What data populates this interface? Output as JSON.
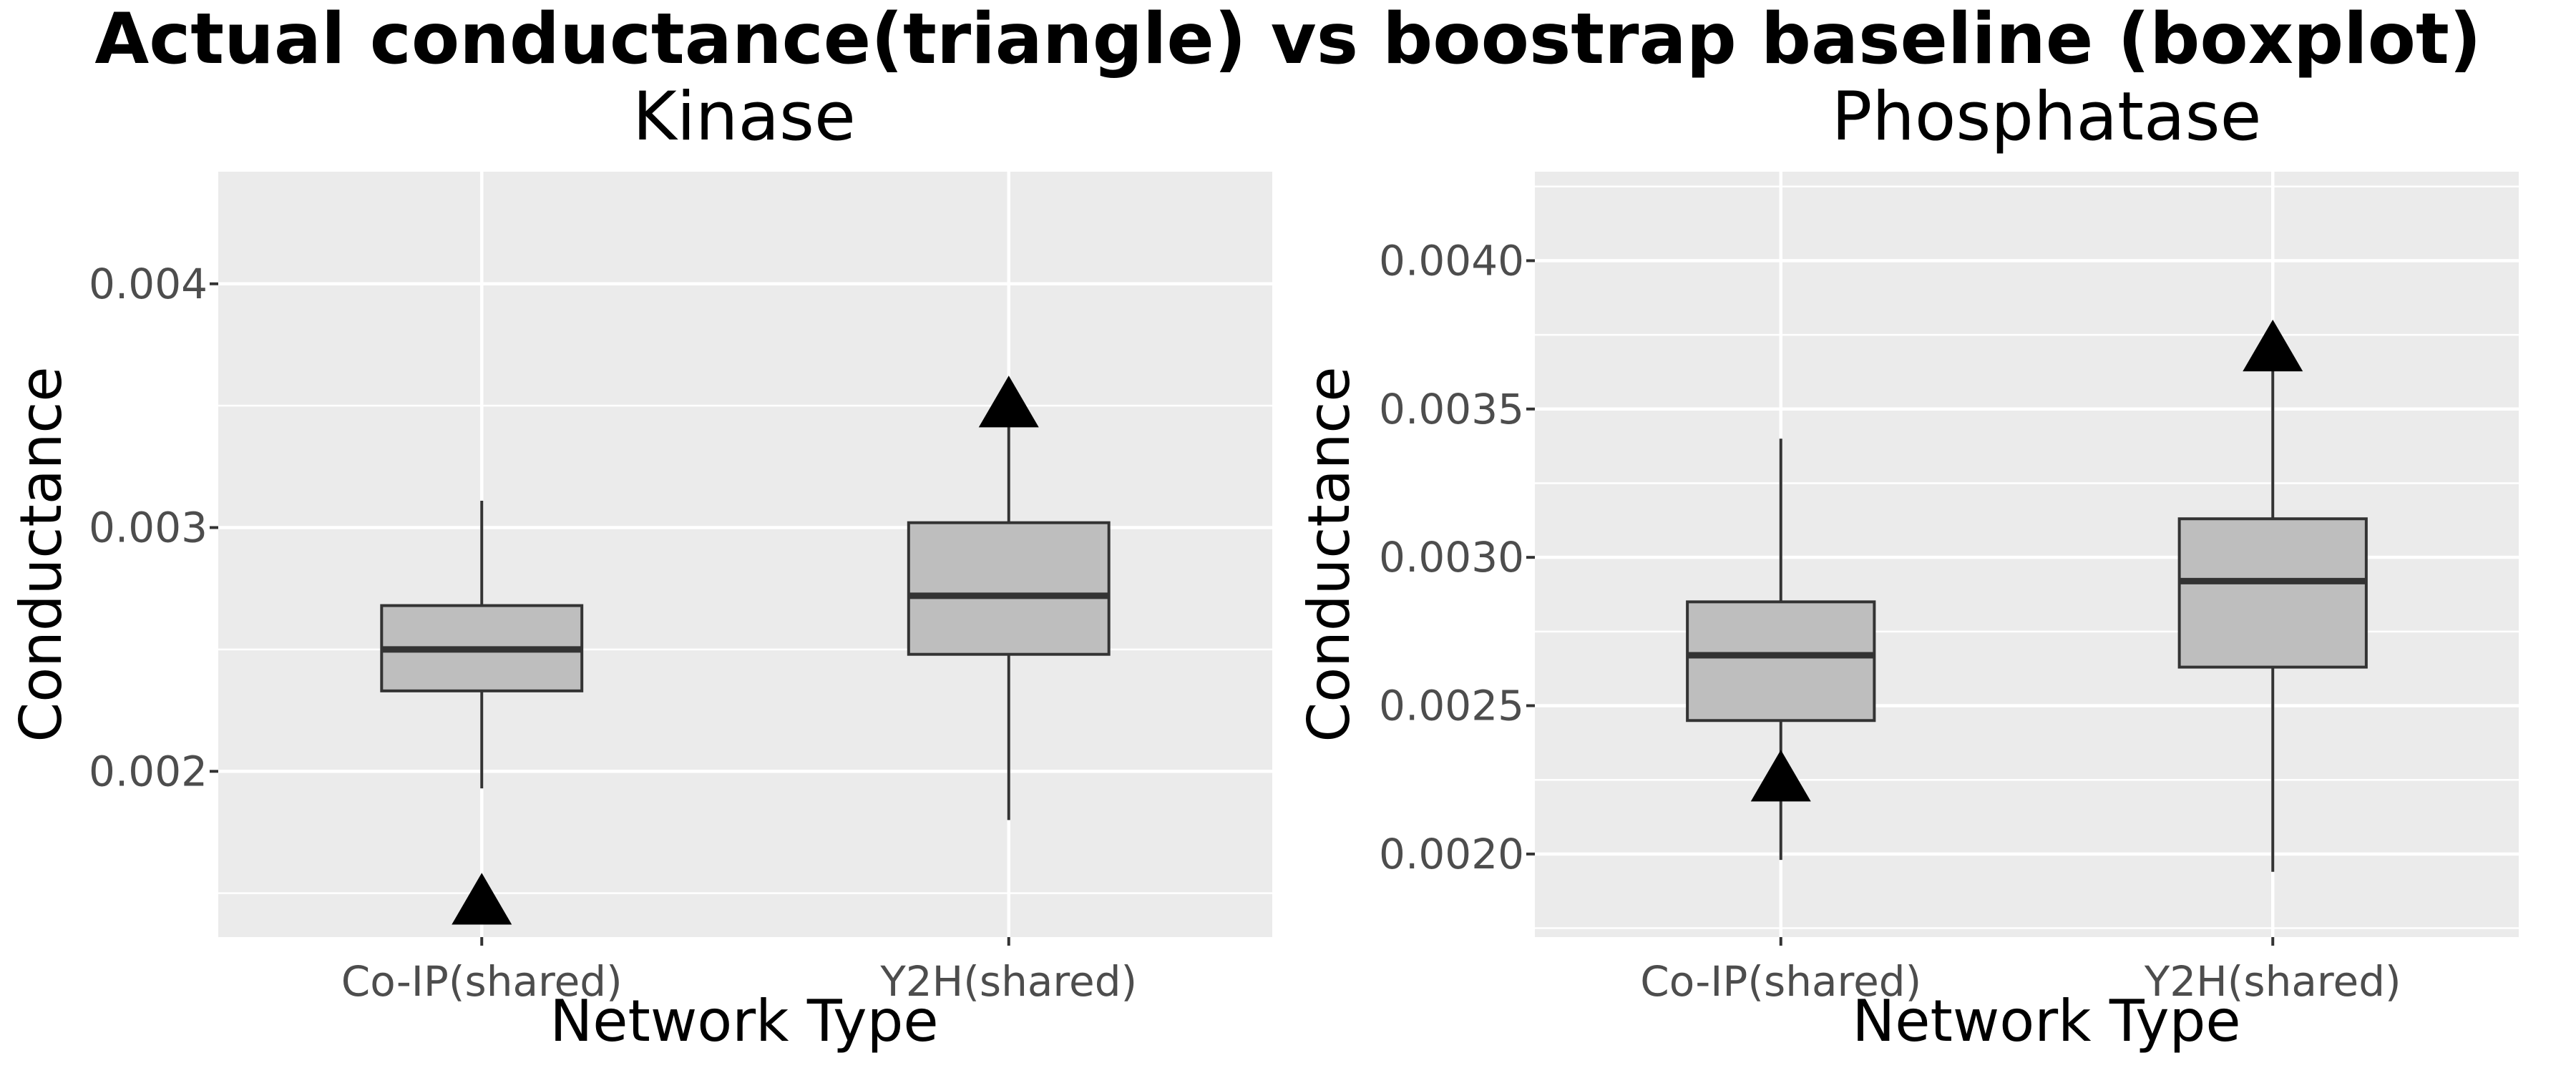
{
  "chart_data": {
    "title": "Actual conductance(triangle) vs boostrap baseline (boxplot)",
    "panels": [
      {
        "title": "Kinase",
        "type": "boxplot",
        "xlabel": "Network Type",
        "ylabel": "Conductance",
        "categories": [
          "Co-IP(shared)",
          "Y2H(shared)"
        ],
        "ylim": [
          0.00132,
          0.00446
        ],
        "yticks": [
          0.002,
          0.003,
          0.004
        ],
        "ytick_labels": [
          "0.002",
          "0.003",
          "0.004"
        ],
        "grid": true,
        "boxes": [
          {
            "category": "Co-IP(shared)",
            "whisker_low": 0.00193,
            "q1": 0.00233,
            "median": 0.0025,
            "q3": 0.00268,
            "whisker_high": 0.00311
          },
          {
            "category": "Y2H(shared)",
            "whisker_low": 0.0018,
            "q1": 0.00248,
            "median": 0.00272,
            "q3": 0.00302,
            "whisker_high": 0.0035
          }
        ],
        "actual": [
          {
            "category": "Co-IP(shared)",
            "value": 0.00146
          },
          {
            "category": "Y2H(shared)",
            "value": 0.0035
          }
        ]
      },
      {
        "title": "Phosphatase",
        "type": "boxplot",
        "xlabel": "Network Type",
        "ylabel": "Conductance",
        "categories": [
          "Co-IP(shared)",
          "Y2H(shared)"
        ],
        "ylim": [
          0.00172,
          0.0043
        ],
        "yticks": [
          0.002,
          0.0025,
          0.003,
          0.0035,
          0.004
        ],
        "ytick_labels": [
          "0.0020",
          "0.0025",
          "0.0030",
          "0.0035",
          "0.0040"
        ],
        "grid": true,
        "boxes": [
          {
            "category": "Co-IP(shared)",
            "whisker_low": 0.00198,
            "q1": 0.00245,
            "median": 0.00267,
            "q3": 0.00285,
            "whisker_high": 0.0034
          },
          {
            "category": "Y2H(shared)",
            "whisker_low": 0.00194,
            "q1": 0.00263,
            "median": 0.00292,
            "q3": 0.00313,
            "whisker_high": 0.0037
          }
        ],
        "actual": [
          {
            "category": "Co-IP(shared)",
            "value": 0.00225
          },
          {
            "category": "Y2H(shared)",
            "value": 0.0037
          }
        ]
      }
    ],
    "colors": {
      "panel_background": "#ebebeb",
      "grid": "#ffffff",
      "box_fill": "#bebebe",
      "box_line": "#333333",
      "whisker": "#333333",
      "actual_marker": "#000000",
      "tick_text": "#4d4d4d"
    }
  }
}
